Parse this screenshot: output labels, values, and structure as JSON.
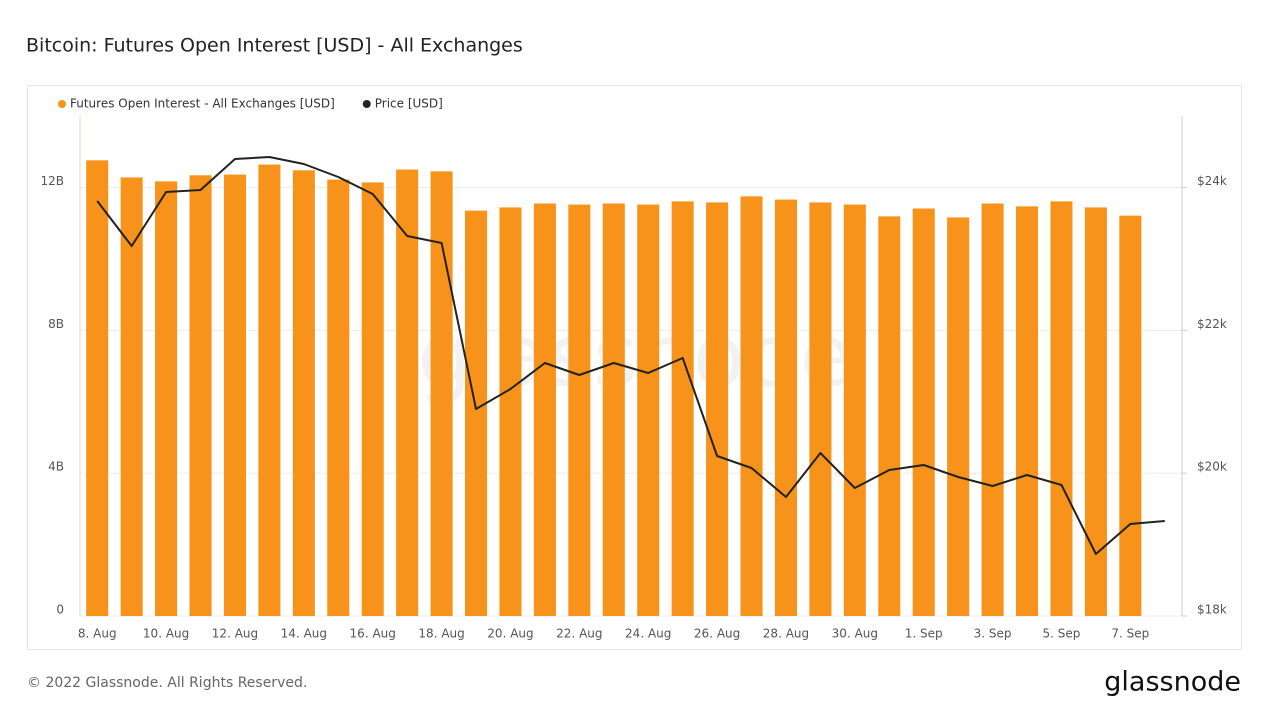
{
  "chart_data": {
    "type": "bar_line",
    "title": "Bitcoin: Futures Open Interest [USD] - All Exchanges",
    "categories": [
      "8. Aug",
      null,
      "10. Aug",
      null,
      "12. Aug",
      null,
      "14. Aug",
      null,
      "16. Aug",
      null,
      "18. Aug",
      null,
      "20. Aug",
      null,
      "22. Aug",
      null,
      "24. Aug",
      null,
      "26. Aug",
      null,
      "28. Aug",
      null,
      "30. Aug",
      null,
      "1. Sep",
      null,
      "3. Sep",
      null,
      "5. Sep",
      null,
      "7. Sep",
      null
    ],
    "series": [
      {
        "name": "Futures Open Interest - All Exchanges [USD]",
        "color": "#f7931a",
        "kind": "bar",
        "values": [
          12760000000,
          12280000000,
          12170000000,
          12340000000,
          12360000000,
          12640000000,
          12480000000,
          12220000000,
          12140000000,
          12500000000,
          12450000000,
          11350000000,
          11440000000,
          11550000000,
          11520000000,
          11550000000,
          11520000000,
          11610000000,
          11580000000,
          11750000000,
          11660000000,
          11580000000,
          11520000000,
          11190000000,
          11410000000,
          11160000000,
          11550000000,
          11470000000,
          11610000000,
          11440000000,
          11210000000,
          null
        ]
      },
      {
        "name": "Price [USD]",
        "color": "#222222",
        "kind": "line",
        "axis": "y2",
        "values": [
          23810,
          23180,
          23936,
          23964,
          24398,
          24426,
          24328,
          24146,
          23908,
          23320,
          23222,
          20898,
          21178,
          21542,
          21374,
          21542,
          21402,
          21612,
          20240,
          20072,
          19666,
          20282,
          19792,
          20044,
          20114,
          19946,
          19820,
          19974,
          19834,
          18868,
          19288,
          19330
        ]
      }
    ],
    "ylim": [
      0,
      14000000000
    ],
    "yticks": [
      0,
      {
        "value": 4000000000,
        "label": "4B"
      },
      {
        "value": 8000000000,
        "label": "8B"
      },
      {
        "value": 12000000000,
        "label": "12B"
      }
    ],
    "y2lim": [
      18000,
      25000
    ],
    "y2ticks": [
      {
        "value": 18000,
        "label": "$18k"
      },
      {
        "value": 20000,
        "label": "$20k"
      },
      {
        "value": 22000,
        "label": "$22k"
      },
      {
        "value": 24000,
        "label": "$24k"
      }
    ],
    "grid": true,
    "legend": "top-left"
  },
  "footer": "© 2022 Glassnode. All Rights Reserved.",
  "logo": "glassnode",
  "watermark": "glassnode"
}
